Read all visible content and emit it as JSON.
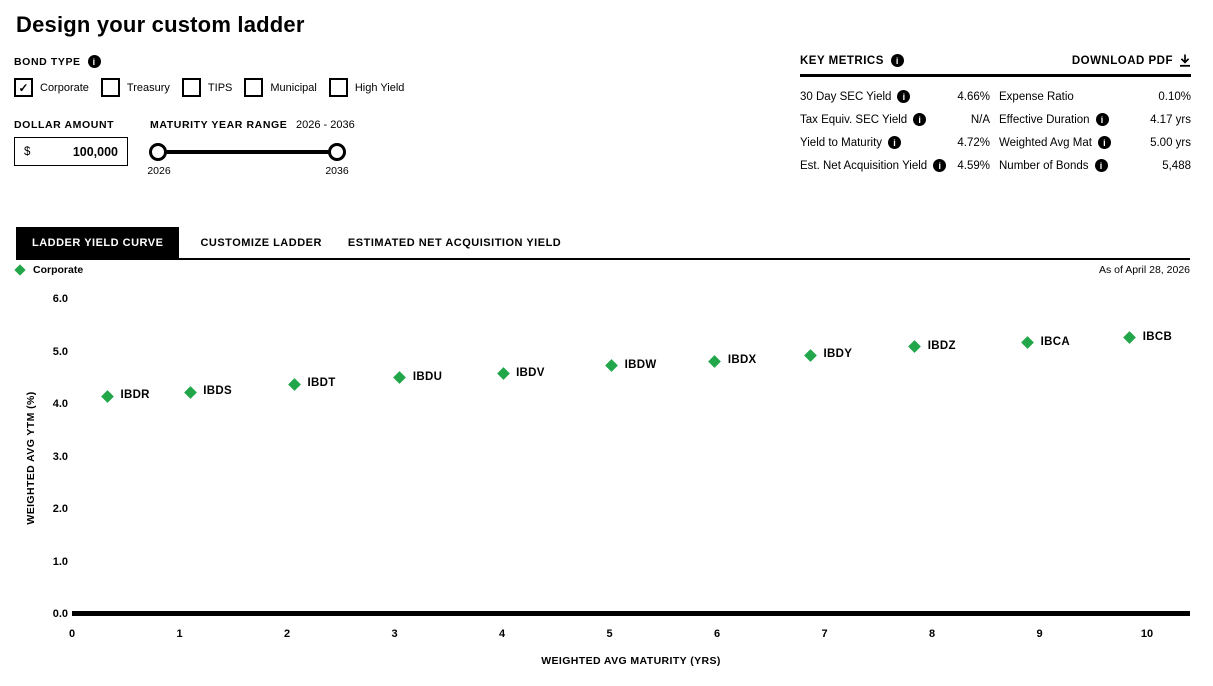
{
  "title": "Design your custom ladder",
  "bond_type": {
    "label": "BOND TYPE",
    "options": [
      {
        "label": "Corporate",
        "checked": true
      },
      {
        "label": "Treasury",
        "checked": false
      },
      {
        "label": "TIPS",
        "checked": false
      },
      {
        "label": "Municipal",
        "checked": false
      },
      {
        "label": "High Yield",
        "checked": false
      }
    ]
  },
  "dollar_amount": {
    "label": "DOLLAR AMOUNT",
    "currency": "$",
    "value": "100,000"
  },
  "maturity_range": {
    "label": "MATURITY YEAR RANGE",
    "range_text": "2026 - 2036",
    "min": "2026",
    "max": "2036"
  },
  "key_metrics": {
    "heading": "KEY METRICS",
    "download_label": "DOWNLOAD PDF",
    "rows": [
      [
        {
          "label": "30 Day SEC Yield",
          "info": true,
          "value": "4.66%"
        },
        {
          "label": "Expense Ratio",
          "info": false,
          "value": "0.10%"
        }
      ],
      [
        {
          "label": "Tax Equiv. SEC Yield",
          "info": true,
          "value": "N/A"
        },
        {
          "label": "Effective Duration",
          "info": true,
          "value": "4.17 yrs"
        }
      ],
      [
        {
          "label": "Yield to Maturity",
          "info": true,
          "value": "4.72%"
        },
        {
          "label": "Weighted Avg Mat",
          "info": true,
          "value": "5.00 yrs"
        }
      ],
      [
        {
          "label": "Est. Net Acquisition Yield",
          "info": true,
          "value": "4.59%"
        },
        {
          "label": "Number of Bonds",
          "info": true,
          "value": "5,488"
        }
      ]
    ]
  },
  "tabs": [
    {
      "label": "LADDER YIELD CURVE",
      "active": true
    },
    {
      "label": "CUSTOMIZE LADDER",
      "active": false
    },
    {
      "label": "ESTIMATED NET ACQUISITION YIELD",
      "active": false
    }
  ],
  "chart_data": {
    "type": "scatter",
    "title": "",
    "xlabel": "WEIGHTED AVG MATURITY (YRS)",
    "ylabel": "WEIGHTED AVG YTM (%)",
    "xlim": [
      0,
      10
    ],
    "ylim": [
      0,
      6
    ],
    "x_ticks": [
      "0",
      "1",
      "2",
      "3",
      "4",
      "5",
      "6",
      "7",
      "8",
      "9",
      "10"
    ],
    "y_ticks": [
      "0.0",
      "1.0",
      "2.0",
      "3.0",
      "4.0",
      "5.0",
      "6.0"
    ],
    "grid": false,
    "legend_position": "top-left",
    "as_of": "As of April 28, 2026",
    "legend": [
      {
        "label": "Corporate",
        "color": "#22A64A",
        "marker": "diamond"
      }
    ],
    "series": [
      {
        "name": "Corporate",
        "marker": "diamond",
        "color": "#22A64A",
        "points": [
          {
            "label": "IBDR",
            "x": 0.33,
            "y": 4.17
          },
          {
            "label": "IBDS",
            "x": 1.1,
            "y": 4.24
          },
          {
            "label": "IBDT",
            "x": 2.07,
            "y": 4.4
          },
          {
            "label": "IBDU",
            "x": 3.05,
            "y": 4.52
          },
          {
            "label": "IBDV",
            "x": 4.01,
            "y": 4.6
          },
          {
            "label": "IBDW",
            "x": 5.02,
            "y": 4.75
          },
          {
            "label": "IBDX",
            "x": 5.98,
            "y": 4.83
          },
          {
            "label": "IBDY",
            "x": 6.87,
            "y": 4.95
          },
          {
            "label": "IBDZ",
            "x": 7.84,
            "y": 5.11
          },
          {
            "label": "IBCA",
            "x": 8.89,
            "y": 5.19
          },
          {
            "label": "IBCB",
            "x": 9.84,
            "y": 5.28
          }
        ]
      }
    ]
  }
}
